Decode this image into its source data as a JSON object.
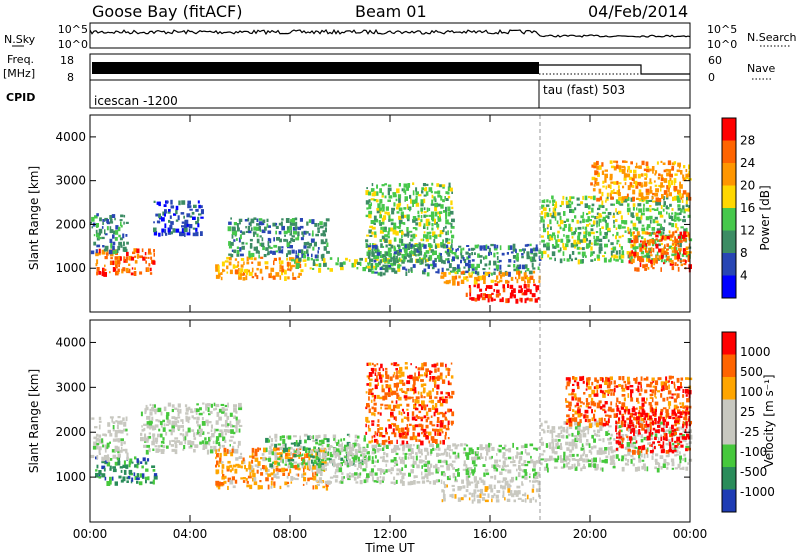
{
  "header": {
    "station": "Goose Bay (fitACF)",
    "beam": "Beam 01",
    "date": "04/Feb/2014"
  },
  "top_labels": {
    "nsky": "N.Sky",
    "nsearch": "N.Search",
    "freq": "Freq.",
    "mhz": "[MHz]",
    "cpid": "CPID",
    "nave": "Nave",
    "nsky_ticks": [
      "10^5",
      "10^0"
    ],
    "nsearch_ticks": [
      "10^5",
      "10^0"
    ],
    "freq_ticks": [
      "18",
      "8"
    ],
    "nave_ticks": [
      "60",
      "0"
    ]
  },
  "cpid_labels": [
    "icescan -1200",
    "tau (fast) 503"
  ],
  "colors": {
    "power": [
      "#0000ff",
      "#2846b4",
      "#3c8c64",
      "#46c84b",
      "#ffd700",
      "#ff9600",
      "#ff6400",
      "#ff0000"
    ],
    "velocity": [
      "#1e3cb4",
      "#2a8c5a",
      "#46c83c",
      "#c8c8c0",
      "#c8c8c0",
      "#ffa500",
      "#ff6400",
      "#ff0000"
    ]
  },
  "chart_data": [
    {
      "type": "line",
      "name": "noise-and-frequency",
      "x_range": [
        "00:00",
        "24:00"
      ],
      "freq_segments": [
        {
          "start": "00:00",
          "end": "18:00",
          "value": "16"
        },
        {
          "start": "18:00",
          "end": "24:00",
          "value": "12"
        }
      ],
      "nave_segments": [
        {
          "start": "18:00",
          "end": "22:00",
          "value": 30
        },
        {
          "start": "22:00",
          "end": "24:00",
          "value": 0
        }
      ],
      "cpid_change": "18:00"
    },
    {
      "type": "heatmap",
      "name": "power",
      "xlabel": "",
      "ylabel": "Slant Range [km]",
      "colorbar_label": "Power [dB]",
      "colorbar_ticks": [
        "28",
        "24",
        "20",
        "16",
        "12",
        "8",
        "4"
      ],
      "x_ticks": [
        "00:00",
        "04:00",
        "08:00",
        "12:00",
        "16:00",
        "20:00",
        "00:00"
      ],
      "y_ticks": [
        "4000",
        "3000",
        "2000",
        "1000"
      ],
      "ylim": [
        0,
        4500
      ],
      "echo_regions": [
        {
          "t0": 0.2,
          "t1": 2.6,
          "r0": 900,
          "r1": 1500,
          "level": 6
        },
        {
          "t0": 0.0,
          "t1": 1.5,
          "r0": 1400,
          "r1": 2300,
          "level": 2
        },
        {
          "t0": 2.5,
          "t1": 4.5,
          "r0": 1800,
          "r1": 2600,
          "level": 1
        },
        {
          "t0": 5.0,
          "t1": 8.5,
          "r0": 800,
          "r1": 1300,
          "level": 5
        },
        {
          "t0": 5.5,
          "t1": 9.5,
          "r0": 1300,
          "r1": 2200,
          "level": 2
        },
        {
          "t0": 8.0,
          "t1": 12.5,
          "r0": 1000,
          "r1": 1300,
          "level": 3
        },
        {
          "t0": 11.0,
          "t1": 14.5,
          "r0": 1200,
          "r1": 3000,
          "level": 3
        },
        {
          "t0": 11.0,
          "t1": 18.0,
          "r0": 900,
          "r1": 1600,
          "level": 2
        },
        {
          "t0": 15.0,
          "t1": 18.0,
          "r0": 300,
          "r1": 700,
          "level": 7
        },
        {
          "t0": 14.0,
          "t1": 18.0,
          "r0": 700,
          "r1": 1000,
          "level": 5
        },
        {
          "t0": 18.0,
          "t1": 24.0,
          "r0": 1200,
          "r1": 2700,
          "level": 3
        },
        {
          "t0": 21.5,
          "t1": 24.0,
          "r0": 1000,
          "r1": 1900,
          "level": 6
        },
        {
          "t0": 20.0,
          "t1": 24.0,
          "r0": 2600,
          "r1": 3500,
          "level": 5
        }
      ]
    },
    {
      "type": "heatmap",
      "name": "velocity",
      "xlabel": "Time UT",
      "ylabel": "Slant Range [km]",
      "colorbar_label": "Velocity [m s⁻¹]",
      "colorbar_ticks": [
        "1000",
        "500",
        "100",
        "25",
        "-25",
        "-100",
        "-500",
        "-1000"
      ],
      "x_ticks": [
        "00:00",
        "04:00",
        "08:00",
        "12:00",
        "16:00",
        "20:00",
        "00:00"
      ],
      "y_ticks": [
        "4000",
        "3000",
        "2000",
        "1000"
      ],
      "ylim": [
        0,
        4500
      ],
      "echo_regions": [
        {
          "t0": 0.2,
          "t1": 2.6,
          "r0": 900,
          "r1": 1500,
          "level": 1
        },
        {
          "t0": 0.0,
          "t1": 1.5,
          "r0": 1400,
          "r1": 2400,
          "level": 3
        },
        {
          "t0": 2.0,
          "t1": 6.0,
          "r0": 1600,
          "r1": 2700,
          "level": 3
        },
        {
          "t0": 5.0,
          "t1": 9.5,
          "r0": 800,
          "r1": 1700,
          "level": 5
        },
        {
          "t0": 7.0,
          "t1": 11.0,
          "r0": 1300,
          "r1": 2000,
          "level": 2
        },
        {
          "t0": 9.0,
          "t1": 18.0,
          "r0": 900,
          "r1": 1800,
          "level": 3
        },
        {
          "t0": 11.0,
          "t1": 14.5,
          "r0": 1800,
          "r1": 3600,
          "level": 6
        },
        {
          "t0": 14.0,
          "t1": 18.0,
          "r0": 500,
          "r1": 900,
          "level": 4
        },
        {
          "t0": 18.0,
          "t1": 24.0,
          "r0": 1200,
          "r1": 2300,
          "level": 3
        },
        {
          "t0": 19.0,
          "t1": 24.0,
          "r0": 2200,
          "r1": 3300,
          "level": 6
        },
        {
          "t0": 21.0,
          "t1": 24.0,
          "r0": 1600,
          "r1": 2600,
          "level": 7
        }
      ]
    }
  ]
}
